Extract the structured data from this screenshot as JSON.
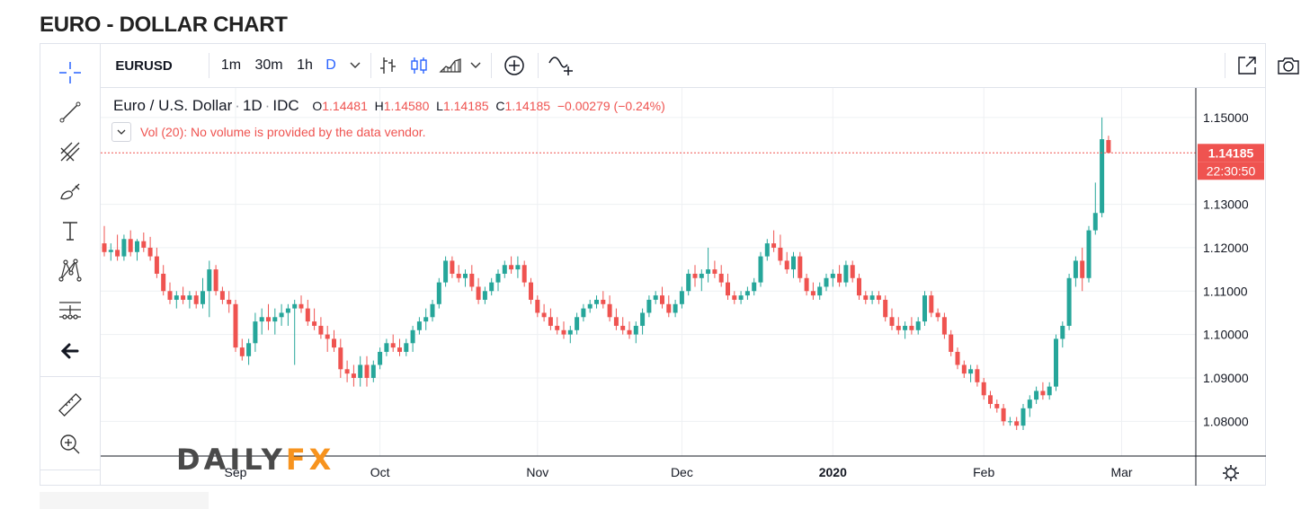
{
  "page_title": "EURO - DOLLAR CHART",
  "toolbar": {
    "symbol": "EURUSD",
    "intervals": [
      "1m",
      "30m",
      "1h",
      "D"
    ],
    "active_interval": "D",
    "active_color": "#2962ff"
  },
  "legend": {
    "name": "Euro / U.S. Dollar",
    "interval": "1D",
    "source": "IDC",
    "o_label": "O",
    "o_value": "1.14481",
    "h_label": "H",
    "h_value": "1.14580",
    "l_label": "L",
    "l_value": "1.14185",
    "c_label": "C",
    "c_value": "1.14185",
    "change": "−0.00279 (−0.24%)",
    "volume_note": "Vol (20): No volume is provided by the data vendor."
  },
  "price_tag": {
    "price": "1.14185",
    "countdown": "22:30:50",
    "color": "#ef5350"
  },
  "logo": {
    "part1": "DAILY",
    "part2": "FX"
  },
  "colors": {
    "up": "#26a69a",
    "down": "#ef5350",
    "grid": "#eef0f3"
  },
  "chart_data": {
    "type": "candlestick",
    "title": "Euro / U.S. Dollar",
    "y_ticks": [
      1.08,
      1.09,
      1.1,
      1.11,
      1.12,
      1.13,
      1.15
    ],
    "ylim": [
      1.072,
      1.1568
    ],
    "x_ticks": [
      "Sep",
      "Oct",
      "Nov",
      "Dec",
      "2020",
      "Feb",
      "Mar"
    ],
    "x_tick_index": [
      20,
      42,
      66,
      88,
      111,
      134,
      155
    ],
    "last_price": 1.14185,
    "candles": [
      [
        1.121,
        1.125,
        1.118,
        1.119
      ],
      [
        1.119,
        1.121,
        1.117,
        1.1195
      ],
      [
        1.1195,
        1.123,
        1.117,
        1.118
      ],
      [
        1.118,
        1.123,
        1.117,
        1.122
      ],
      [
        1.122,
        1.124,
        1.118,
        1.119
      ],
      [
        1.119,
        1.122,
        1.117,
        1.1215
      ],
      [
        1.1215,
        1.1235,
        1.119,
        1.12
      ],
      [
        1.12,
        1.1225,
        1.117,
        1.118
      ],
      [
        1.118,
        1.12,
        1.113,
        1.114
      ],
      [
        1.114,
        1.116,
        1.109,
        1.11
      ],
      [
        1.11,
        1.112,
        1.107,
        1.108
      ],
      [
        1.108,
        1.11,
        1.106,
        1.109
      ],
      [
        1.109,
        1.111,
        1.107,
        1.108
      ],
      [
        1.108,
        1.11,
        1.106,
        1.109
      ],
      [
        1.109,
        1.11,
        1.106,
        1.107
      ],
      [
        1.107,
        1.113,
        1.106,
        1.11
      ],
      [
        1.11,
        1.117,
        1.104,
        1.115
      ],
      [
        1.115,
        1.116,
        1.109,
        1.11
      ],
      [
        1.11,
        1.111,
        1.107,
        1.108
      ],
      [
        1.108,
        1.11,
        1.105,
        1.107
      ],
      [
        1.107,
        1.108,
        1.096,
        1.097
      ],
      [
        1.097,
        1.099,
        1.094,
        1.095
      ],
      [
        1.095,
        1.099,
        1.093,
        1.098
      ],
      [
        1.098,
        1.105,
        1.096,
        1.103
      ],
      [
        1.103,
        1.106,
        1.1,
        1.104
      ],
      [
        1.104,
        1.107,
        1.101,
        1.103
      ],
      [
        1.103,
        1.106,
        1.1,
        1.104
      ],
      [
        1.104,
        1.107,
        1.102,
        1.105
      ],
      [
        1.105,
        1.107,
        1.102,
        1.106
      ],
      [
        1.106,
        1.108,
        1.093,
        1.107
      ],
      [
        1.107,
        1.109,
        1.105,
        1.106
      ],
      [
        1.106,
        1.108,
        1.102,
        1.103
      ],
      [
        1.103,
        1.106,
        1.101,
        1.102
      ],
      [
        1.102,
        1.104,
        1.099,
        1.1
      ],
      [
        1.1,
        1.102,
        1.096,
        1.099
      ],
      [
        1.099,
        1.101,
        1.096,
        1.097
      ],
      [
        1.097,
        1.099,
        1.09,
        1.092
      ],
      [
        1.092,
        1.094,
        1.089,
        1.091
      ],
      [
        1.091,
        1.093,
        1.088,
        1.09
      ],
      [
        1.09,
        1.095,
        1.088,
        1.093
      ],
      [
        1.093,
        1.095,
        1.088,
        1.09
      ],
      [
        1.09,
        1.094,
        1.089,
        1.093
      ],
      [
        1.093,
        1.097,
        1.092,
        1.096
      ],
      [
        1.096,
        1.099,
        1.095,
        1.098
      ],
      [
        1.098,
        1.1,
        1.096,
        1.097
      ],
      [
        1.097,
        1.099,
        1.095,
        1.096
      ],
      [
        1.096,
        1.099,
        1.095,
        1.098
      ],
      [
        1.098,
        1.102,
        1.096,
        1.101
      ],
      [
        1.101,
        1.104,
        1.1,
        1.103
      ],
      [
        1.103,
        1.106,
        1.101,
        1.104
      ],
      [
        1.104,
        1.108,
        1.103,
        1.107
      ],
      [
        1.107,
        1.113,
        1.106,
        1.112
      ],
      [
        1.112,
        1.118,
        1.111,
        1.117
      ],
      [
        1.117,
        1.118,
        1.113,
        1.114
      ],
      [
        1.114,
        1.116,
        1.112,
        1.113
      ],
      [
        1.113,
        1.115,
        1.111,
        1.114
      ],
      [
        1.114,
        1.116,
        1.11,
        1.111
      ],
      [
        1.111,
        1.113,
        1.107,
        1.108
      ],
      [
        1.108,
        1.111,
        1.107,
        1.11
      ],
      [
        1.11,
        1.113,
        1.109,
        1.112
      ],
      [
        1.112,
        1.115,
        1.11,
        1.114
      ],
      [
        1.114,
        1.117,
        1.113,
        1.116
      ],
      [
        1.116,
        1.118,
        1.114,
        1.115
      ],
      [
        1.115,
        1.118,
        1.113,
        1.116
      ],
      [
        1.116,
        1.117,
        1.111,
        1.112
      ],
      [
        1.112,
        1.113,
        1.107,
        1.108
      ],
      [
        1.108,
        1.109,
        1.104,
        1.105
      ],
      [
        1.105,
        1.107,
        1.103,
        1.104
      ],
      [
        1.104,
        1.106,
        1.101,
        1.102
      ],
      [
        1.102,
        1.104,
        1.1,
        1.101
      ],
      [
        1.101,
        1.103,
        1.099,
        1.1
      ],
      [
        1.1,
        1.102,
        1.098,
        1.101
      ],
      [
        1.101,
        1.105,
        1.1,
        1.104
      ],
      [
        1.104,
        1.107,
        1.103,
        1.106
      ],
      [
        1.106,
        1.108,
        1.105,
        1.107
      ],
      [
        1.107,
        1.109,
        1.106,
        1.108
      ],
      [
        1.108,
        1.11,
        1.106,
        1.107
      ],
      [
        1.107,
        1.109,
        1.103,
        1.104
      ],
      [
        1.104,
        1.106,
        1.101,
        1.102
      ],
      [
        1.102,
        1.104,
        1.1,
        1.101
      ],
      [
        1.101,
        1.103,
        1.099,
        1.1
      ],
      [
        1.1,
        1.103,
        1.098,
        1.102
      ],
      [
        1.102,
        1.106,
        1.1,
        1.105
      ],
      [
        1.105,
        1.109,
        1.104,
        1.108
      ],
      [
        1.108,
        1.11,
        1.107,
        1.109
      ],
      [
        1.109,
        1.111,
        1.106,
        1.107
      ],
      [
        1.107,
        1.109,
        1.104,
        1.105
      ],
      [
        1.105,
        1.108,
        1.104,
        1.107
      ],
      [
        1.107,
        1.111,
        1.106,
        1.11
      ],
      [
        1.11,
        1.115,
        1.109,
        1.114
      ],
      [
        1.114,
        1.116,
        1.111,
        1.113
      ],
      [
        1.113,
        1.115,
        1.11,
        1.114
      ],
      [
        1.114,
        1.12,
        1.112,
        1.115
      ],
      [
        1.115,
        1.117,
        1.113,
        1.114
      ],
      [
        1.114,
        1.116,
        1.111,
        1.112
      ],
      [
        1.112,
        1.114,
        1.108,
        1.109
      ],
      [
        1.109,
        1.11,
        1.107,
        1.108
      ],
      [
        1.108,
        1.11,
        1.107,
        1.109
      ],
      [
        1.109,
        1.111,
        1.108,
        1.11
      ],
      [
        1.11,
        1.113,
        1.109,
        1.112
      ],
      [
        1.112,
        1.119,
        1.111,
        1.118
      ],
      [
        1.118,
        1.122,
        1.117,
        1.121
      ],
      [
        1.121,
        1.124,
        1.119,
        1.12
      ],
      [
        1.12,
        1.123,
        1.116,
        1.117
      ],
      [
        1.117,
        1.119,
        1.114,
        1.115
      ],
      [
        1.115,
        1.119,
        1.113,
        1.118
      ],
      [
        1.118,
        1.119,
        1.112,
        1.113
      ],
      [
        1.113,
        1.114,
        1.109,
        1.11
      ],
      [
        1.11,
        1.112,
        1.108,
        1.109
      ],
      [
        1.109,
        1.112,
        1.108,
        1.111
      ],
      [
        1.111,
        1.114,
        1.11,
        1.113
      ],
      [
        1.113,
        1.115,
        1.111,
        1.114
      ],
      [
        1.114,
        1.116,
        1.111,
        1.112
      ],
      [
        1.112,
        1.117,
        1.111,
        1.116
      ],
      [
        1.116,
        1.117,
        1.112,
        1.113
      ],
      [
        1.113,
        1.114,
        1.108,
        1.109
      ],
      [
        1.109,
        1.11,
        1.107,
        1.108
      ],
      [
        1.108,
        1.11,
        1.107,
        1.109
      ],
      [
        1.109,
        1.11,
        1.107,
        1.108
      ],
      [
        1.108,
        1.109,
        1.103,
        1.104
      ],
      [
        1.104,
        1.106,
        1.101,
        1.102
      ],
      [
        1.102,
        1.104,
        1.1,
        1.101
      ],
      [
        1.101,
        1.103,
        1.099,
        1.102
      ],
      [
        1.102,
        1.104,
        1.1,
        1.101
      ],
      [
        1.101,
        1.104,
        1.1,
        1.103
      ],
      [
        1.103,
        1.11,
        1.102,
        1.109
      ],
      [
        1.109,
        1.11,
        1.104,
        1.105
      ],
      [
        1.105,
        1.106,
        1.103,
        1.104
      ],
      [
        1.104,
        1.105,
        1.099,
        1.1
      ],
      [
        1.1,
        1.101,
        1.095,
        1.096
      ],
      [
        1.096,
        1.097,
        1.092,
        1.093
      ],
      [
        1.093,
        1.094,
        1.09,
        1.091
      ],
      [
        1.091,
        1.093,
        1.089,
        1.092
      ],
      [
        1.092,
        1.093,
        1.088,
        1.089
      ],
      [
        1.089,
        1.09,
        1.085,
        1.086
      ],
      [
        1.086,
        1.087,
        1.083,
        1.084
      ],
      [
        1.084,
        1.085,
        1.082,
        1.083
      ],
      [
        1.083,
        1.084,
        1.079,
        1.08
      ],
      [
        1.08,
        1.081,
        1.079,
        1.08
      ],
      [
        1.08,
        1.081,
        1.078,
        1.079
      ],
      [
        1.079,
        1.084,
        1.078,
        1.083
      ],
      [
        1.083,
        1.086,
        1.081,
        1.085
      ],
      [
        1.085,
        1.088,
        1.084,
        1.087
      ],
      [
        1.087,
        1.089,
        1.085,
        1.086
      ],
      [
        1.086,
        1.089,
        1.085,
        1.088
      ],
      [
        1.088,
        1.1,
        1.087,
        1.099
      ],
      [
        1.099,
        1.103,
        1.097,
        1.102
      ],
      [
        1.102,
        1.114,
        1.101,
        1.113
      ],
      [
        1.113,
        1.118,
        1.111,
        1.117
      ],
      [
        1.117,
        1.12,
        1.11,
        1.113
      ],
      [
        1.113,
        1.125,
        1.112,
        1.124
      ],
      [
        1.124,
        1.135,
        1.123,
        1.128
      ],
      [
        1.128,
        1.15,
        1.127,
        1.145
      ],
      [
        1.14481,
        1.1458,
        1.14185,
        1.14185
      ]
    ]
  }
}
